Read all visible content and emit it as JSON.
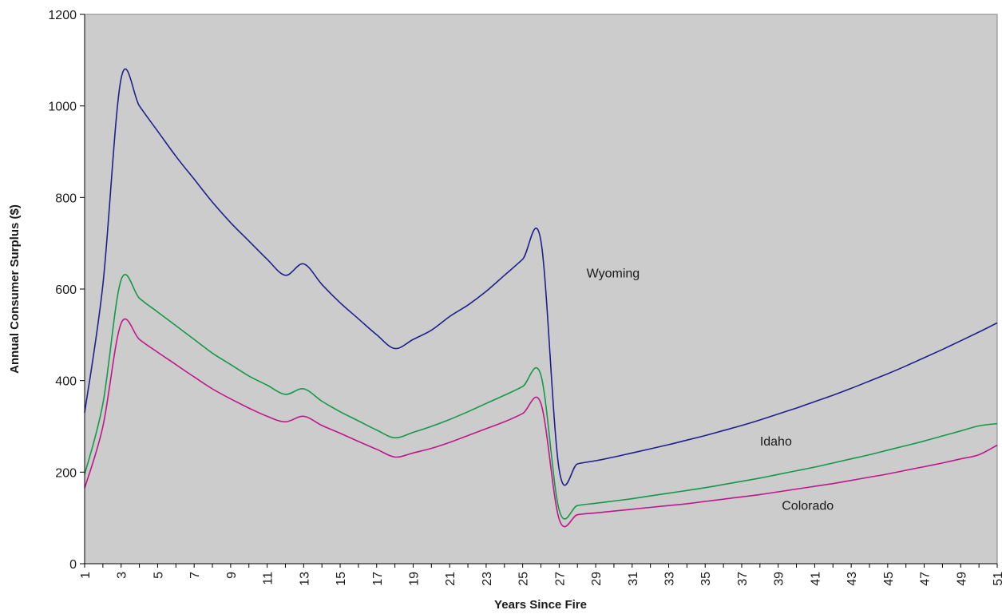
{
  "chart_data": {
    "type": "line",
    "title": "",
    "xlabel": "Years Since Fire",
    "ylabel": "Annual Consumer Surplus  ($)",
    "xlim": [
      1,
      51
    ],
    "ylim": [
      0,
      1200
    ],
    "x_ticks": [
      1,
      3,
      5,
      7,
      9,
      11,
      13,
      15,
      17,
      19,
      21,
      23,
      25,
      27,
      29,
      31,
      33,
      35,
      37,
      39,
      41,
      43,
      45,
      47,
      49,
      51
    ],
    "x_tick_labels": [
      "1",
      "3",
      "5",
      "7",
      "9",
      "11",
      "13",
      "15",
      "17",
      "19",
      "21",
      "23",
      "25",
      "27",
      "29",
      "31",
      "33",
      "35",
      "37",
      "39",
      "41",
      "43",
      "45",
      "47",
      "49",
      "51"
    ],
    "y_ticks": [
      0,
      200,
      400,
      600,
      800,
      1000,
      1200
    ],
    "y_tick_labels": [
      "0",
      "200",
      "400",
      "600",
      "800",
      "1000",
      "1200"
    ],
    "grid": false,
    "plot_background": "#cccccc",
    "legend": "none",
    "x": [
      1,
      2,
      3,
      4,
      5,
      6,
      7,
      8,
      9,
      10,
      11,
      12,
      13,
      14,
      15,
      16,
      17,
      18,
      19,
      20,
      21,
      22,
      23,
      24,
      25,
      26,
      27,
      28,
      29,
      30,
      31,
      32,
      33,
      34,
      35,
      36,
      37,
      38,
      39,
      40,
      41,
      42,
      43,
      44,
      45,
      46,
      47,
      48,
      49,
      50,
      51
    ],
    "series": [
      {
        "name": "Wyoming",
        "color": "#1f1f8f",
        "label_at": [
          28.5,
          625
        ],
        "values": [
          330,
          610,
          1060,
          1000,
          945,
          890,
          840,
          790,
          745,
          705,
          665,
          630,
          655,
          610,
          570,
          535,
          500,
          470,
          490,
          510,
          540,
          565,
          595,
          630,
          665,
          705,
          205,
          218,
          225,
          233,
          242,
          251,
          260,
          270,
          280,
          291,
          302,
          314,
          327,
          340,
          354,
          368,
          383,
          399,
          415,
          432,
          450,
          468,
          487,
          506,
          526
        ]
      },
      {
        "name": "Idaho",
        "color": "#129a4a",
        "label_at": [
          38,
          258
        ],
        "values": [
          195,
          350,
          620,
          580,
          550,
          520,
          490,
          460,
          435,
          410,
          390,
          370,
          382,
          355,
          332,
          312,
          292,
          275,
          287,
          300,
          315,
          332,
          350,
          368,
          387,
          412,
          117,
          127,
          132,
          137,
          142,
          148,
          154,
          160,
          166,
          173,
          180,
          187,
          195,
          203,
          211,
          220,
          229,
          238,
          248,
          258,
          268,
          279,
          290,
          301,
          306
        ]
      },
      {
        "name": "Colorado",
        "color": "#c0168a",
        "label_at": [
          39.2,
          118
        ],
        "values": [
          165,
          300,
          525,
          490,
          462,
          435,
          408,
          382,
          360,
          340,
          322,
          310,
          322,
          302,
          285,
          267,
          250,
          233,
          242,
          252,
          265,
          280,
          295,
          310,
          328,
          350,
          97,
          107,
          111,
          115,
          119,
          123,
          127,
          131,
          136,
          141,
          146,
          151,
          157,
          163,
          169,
          175,
          182,
          189,
          196,
          204,
          212,
          220,
          229,
          238,
          259
        ]
      }
    ]
  }
}
